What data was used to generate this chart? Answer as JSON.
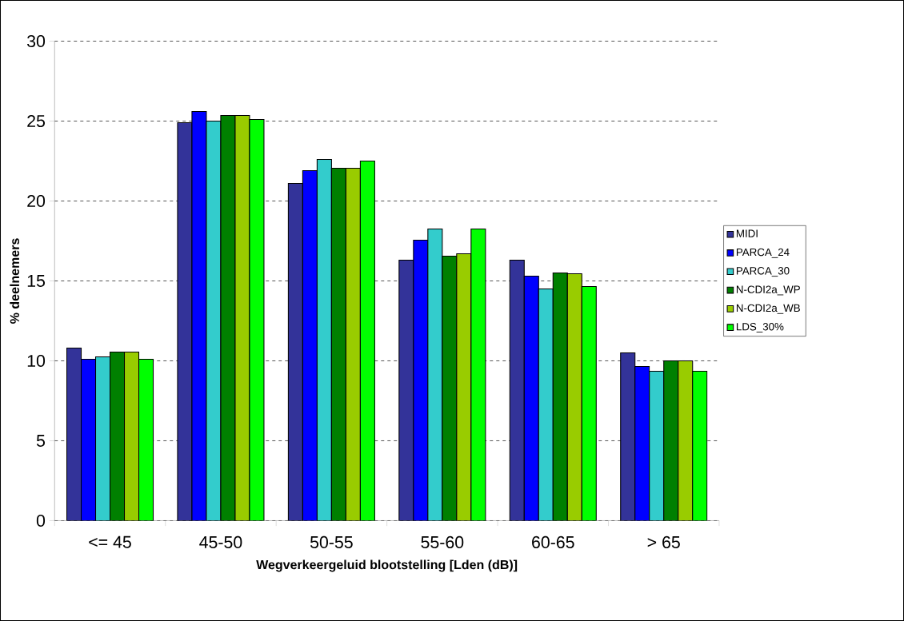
{
  "chart_data": {
    "type": "bar",
    "xlabel": "Wegverkeergeluid blootstelling [Lden (dB)]",
    "ylabel": "% deelnemers",
    "categories": [
      "<= 45",
      "45-50",
      "50-55",
      "55-60",
      "60-65",
      "> 65"
    ],
    "series": [
      {
        "name": "MIDI",
        "color": "#333399",
        "values": [
          10.8,
          24.9,
          21.1,
          16.3,
          16.3,
          10.5
        ]
      },
      {
        "name": "PARCA_24",
        "color": "#0000ff",
        "values": [
          10.1,
          25.6,
          21.9,
          17.55,
          15.3,
          9.65
        ]
      },
      {
        "name": "PARCA_30",
        "color": "#33cccc",
        "values": [
          10.25,
          25.0,
          22.6,
          18.25,
          14.5,
          9.35
        ]
      },
      {
        "name": "N-CDI2a_WP",
        "color": "#008000",
        "values": [
          10.55,
          25.35,
          22.05,
          16.55,
          15.5,
          10.0
        ]
      },
      {
        "name": "N-CDI2a_WB",
        "color": "#99cc00",
        "values": [
          10.55,
          25.35,
          22.05,
          16.7,
          15.45,
          10.0
        ]
      },
      {
        "name": "LDS_30%",
        "color": "#00ff00",
        "values": [
          10.1,
          25.1,
          22.5,
          18.25,
          14.65,
          9.35
        ]
      }
    ],
    "ylim": [
      0,
      30
    ],
    "yticks": [
      0,
      5,
      10,
      15,
      20,
      25,
      30
    ],
    "grid": "y",
    "legend": "right"
  }
}
